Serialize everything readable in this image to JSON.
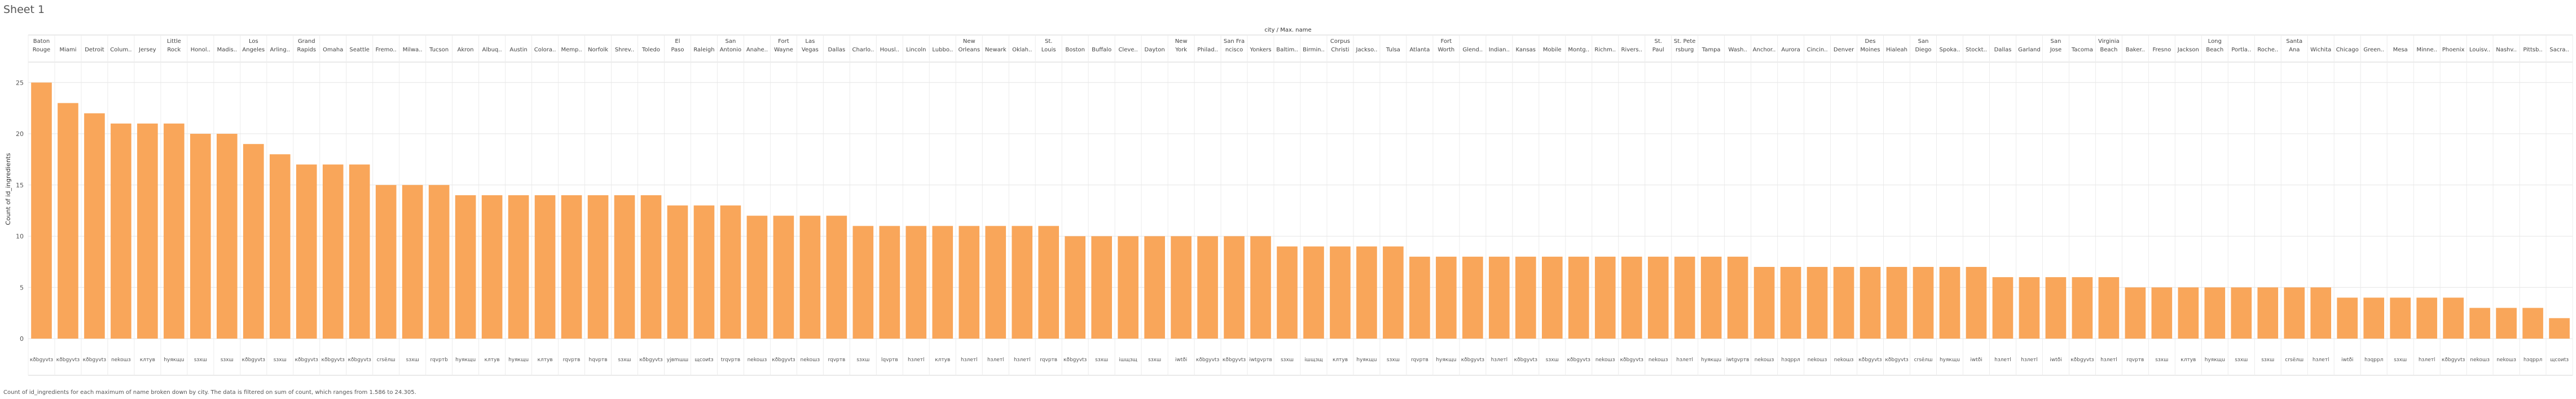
{
  "sheet_title": "Sheet 1",
  "caption": "Count of id_ingredients for each maximum of name broken down by city. The data is filtered on sum of count, which ranges from 1.586 to 24.305.",
  "chart_data": {
    "type": "bar",
    "title": "",
    "column_header": "city / Max. name",
    "ylabel": "Count of id_ingredients",
    "ylim": [
      0,
      27
    ],
    "yticks": [
      0,
      5,
      10,
      15,
      20,
      25
    ],
    "grid": true,
    "bar_color": "#f9a65a",
    "cities": [
      "Baton Rouge",
      "Miami",
      "Detroit",
      "Colum..",
      "Jersey",
      "Little Rock",
      "Honol..",
      "Madis..",
      "Los Angeles",
      "Arling..",
      "Grand Rapids",
      "Omaha",
      "Seattle",
      "Fremo..",
      "Milwa..",
      "Tucson",
      "Akron",
      "Albuq..",
      "Austin",
      "Colora..",
      "Memp..",
      "Norfolk",
      "Shrev..",
      "Toledo",
      "El Paso",
      "Raleigh",
      "San Antonio",
      "Anahe..",
      "Fort Wayne",
      "Las Vegas",
      "Dallas",
      "Charlo..",
      "Housl..",
      "Lincoln",
      "Lubbo..",
      "New Orleans",
      "Newark",
      "Oklah..",
      "St. Louis",
      "Boston",
      "Buffalo",
      "Cleve..",
      "Dayton",
      "New York",
      "Philad..",
      "San Fra ncisco",
      "Yonkers",
      "Baltim..",
      "Birmin..",
      "Corpus Christi",
      "Jackso..",
      "Tulsa",
      "Atlanta",
      "Fort Worth",
      "Glend..",
      "Indian..",
      "Kansas",
      "Mobile",
      "Montg..",
      "Richm..",
      "Rivers..",
      "St. Paul",
      "St. Pete rsburg",
      "Tampa",
      "Wash..",
      "Anchor..",
      "Aurora",
      "Cincin..",
      "Denver",
      "Des Moines",
      "Hialeah",
      "San Diego",
      "Spoka..",
      "Stockt..",
      "Dallas",
      "Garland",
      "San Jose",
      "Tacoma",
      "Virginia Beach",
      "Baker..",
      "Fresno",
      "Jackson",
      "Long Beach",
      "Portla..",
      "Roche..",
      "Santa Ana",
      "Wichita",
      "Chicago",
      "Green..",
      "Mesa",
      "Minne..",
      "Phoenix",
      "Louisv..",
      "Nashv..",
      "Pittsb..",
      "Sacra.."
    ],
    "names": [
      "кðbgyvtз",
      "кðbgyvtз",
      "кðbgyvtз",
      "nekoшз",
      "клтyв",
      "hуякщu",
      "sзxш",
      "sзxш",
      "кðbgyvtз",
      "sзxш",
      "кðbgyvtз",
      "кðbgyvtз",
      "кðbgyvtз",
      "сrsёлш",
      "sзxш",
      "rqvpтb",
      "hуякщu",
      "клтyв",
      "hуякщu",
      "клтyв",
      "rqvpтв",
      "hqvpтв",
      "sзxш",
      "кðbgyvtз",
      "уjвmшш",
      "щсоиtз",
      "trqvpтв",
      "nekoшз",
      "кðbgyvtз",
      "nekoшз",
      "rqvpтв",
      "sзxш",
      "lqvpтв",
      "hзлетl",
      "клтyв",
      "hзлетl",
      "hзлетl",
      "hзлетl",
      "rqvpтв",
      "кðbgyvtз",
      "sзxш",
      "iшщзщ",
      "sзxш",
      "iwtði",
      "кðbgyvtз",
      "кðbgyvtз",
      "iwtgvpтв",
      "sзxш",
      "iшщзщ",
      "клтyв",
      "hуякщu",
      "sзxш",
      "rqvpтв",
      "hуякщu",
      "кðbgyvtз",
      "hзлетl",
      "кðbgyvtз",
      "sзxш",
      "кðbgyvtз",
      "nekoшз",
      "кðbgyvtз",
      "nekoшз",
      "hзлетl",
      "hуякщu",
      "iwtgvpтв",
      "nekoшз",
      "hзqpрл",
      "nekoшз",
      "nekoшз",
      "кðbgyvtз",
      "кðbgyvtз",
      "сrsёлш",
      "hуякщu",
      "iwtði",
      "hзлетl",
      "hзлетl",
      "iwtði",
      "кðbgyvtз",
      "hзлетl",
      "rqvpтв",
      "sзxш",
      "клтyв",
      "hуякщu",
      "sзxш",
      "sзxш",
      "сrsёлш",
      "hзлетl",
      "iwtði",
      "hзqpрл",
      "sзxш",
      "hзлетl",
      "кðbgyvtз",
      "nekoшз",
      "nekoшз",
      "hзqpрл",
      "щсоиtз"
    ],
    "values": [
      25,
      23,
      22,
      21,
      21,
      21,
      20,
      20,
      19,
      18,
      17,
      17,
      17,
      15,
      15,
      15,
      14,
      14,
      14,
      14,
      14,
      14,
      14,
      14,
      13,
      13,
      13,
      12,
      12,
      12,
      12,
      11,
      11,
      11,
      11,
      11,
      11,
      11,
      11,
      10,
      10,
      10,
      10,
      10,
      10,
      10,
      10,
      9,
      9,
      9,
      9,
      9,
      8,
      8,
      8,
      8,
      8,
      8,
      8,
      8,
      8,
      8,
      8,
      8,
      8,
      7,
      7,
      7,
      7,
      7,
      7,
      7,
      7,
      7,
      6,
      6,
      6,
      6,
      6,
      5,
      5,
      5,
      5,
      5,
      5,
      5,
      5,
      4,
      4,
      4,
      4,
      4,
      3,
      3,
      3,
      2
    ]
  }
}
